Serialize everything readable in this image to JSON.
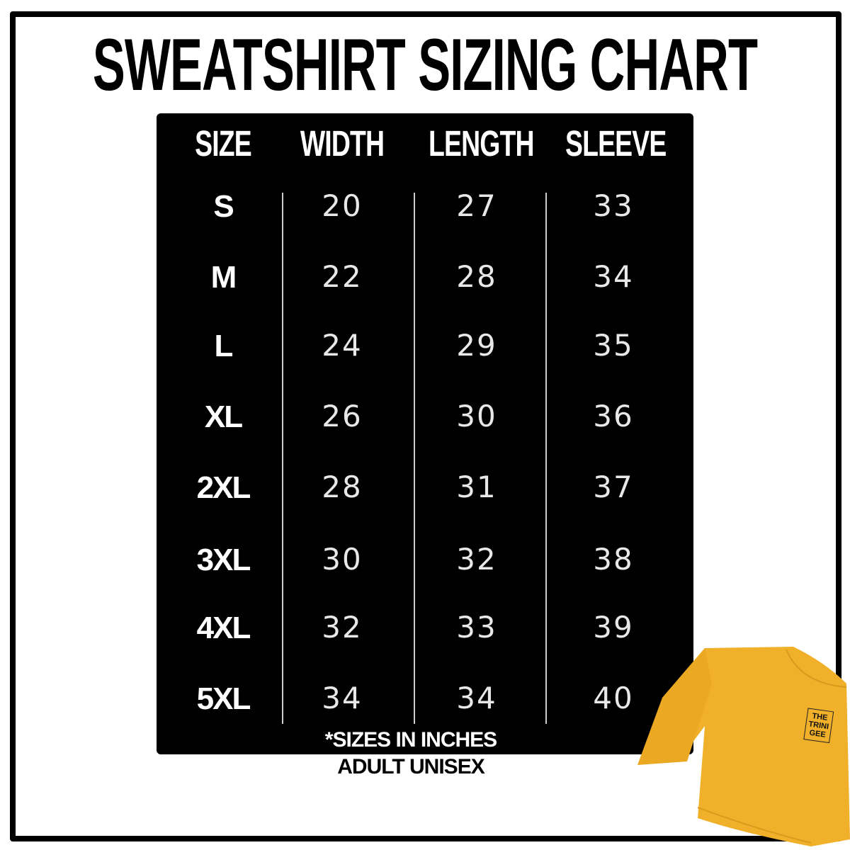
{
  "title": "SWEATSHIRT SIZING CHART",
  "table": {
    "headers": [
      "SIZE",
      "WIDTH",
      "LENGTH",
      "SLEEVE"
    ],
    "rows": [
      [
        "S",
        "20",
        "27",
        "33"
      ],
      [
        "M",
        "22",
        "28",
        "34"
      ],
      [
        "L",
        "24",
        "29",
        "35"
      ],
      [
        "XL",
        "26",
        "30",
        "36"
      ],
      [
        "2XL",
        "28",
        "31",
        "37"
      ],
      [
        "3XL",
        "30",
        "32",
        "38"
      ],
      [
        "4XL",
        "32",
        "33",
        "39"
      ],
      [
        "5XL",
        "34",
        "34",
        "40"
      ]
    ]
  },
  "footnote": {
    "line1": "*SIZES IN INCHES",
    "line2": "ADULT UNISEX"
  },
  "product": {
    "logo_text": "THE TRINI GEE",
    "color": "#F0B02A"
  }
}
